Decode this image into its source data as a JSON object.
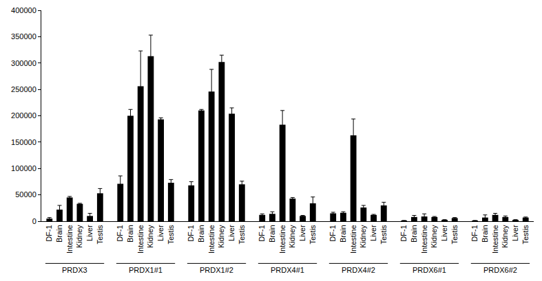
{
  "chart_data": {
    "type": "bar",
    "color": "#000000",
    "grid": false,
    "ylim": [
      0,
      400000
    ],
    "yticks": [
      0,
      50000,
      100000,
      150000,
      200000,
      250000,
      300000,
      350000,
      400000
    ],
    "groups": [
      {
        "label": "PRDX3",
        "categories": [
          "DF-1",
          "Brain",
          "Intestine",
          "Kidney",
          "Liver",
          "Testis"
        ],
        "values": [
          5000,
          22000,
          45000,
          33000,
          10000,
          53000
        ],
        "error": [
          2000,
          8000,
          2000,
          1000,
          5000,
          9000
        ]
      },
      {
        "label": "PRDX1#1",
        "categories": [
          "DF-1",
          "Brain",
          "Intestine",
          "Kidney",
          "Liver",
          "Testis"
        ],
        "values": [
          71000,
          200000,
          256000,
          313000,
          193000,
          73000
        ],
        "error": [
          15000,
          12000,
          67000,
          40000,
          3000,
          6000
        ]
      },
      {
        "label": "PRDX1#2",
        "categories": [
          "DF-1",
          "Brain",
          "Intestine",
          "Kidney",
          "Liver",
          "Testis"
        ],
        "values": [
          68000,
          210000,
          246000,
          302000,
          204000,
          70000
        ],
        "error": [
          7000,
          2000,
          42000,
          13000,
          11000,
          6000
        ]
      },
      {
        "label": "PRDX4#1",
        "categories": [
          "DF-1",
          "Brain",
          "Intestine",
          "Kidney",
          "Liver",
          "Testis"
        ],
        "values": [
          12000,
          14000,
          183000,
          43000,
          10000,
          34000
        ],
        "error": [
          2000,
          4000,
          27000,
          2000,
          1000,
          12000
        ]
      },
      {
        "label": "PRDX4#2",
        "categories": [
          "DF-1",
          "Brain",
          "Intestine",
          "Kidney",
          "Liver",
          "Testis"
        ],
        "values": [
          15000,
          16000,
          163000,
          26000,
          12000,
          30000
        ],
        "error": [
          2000,
          2000,
          31000,
          4000,
          1000,
          6000
        ]
      },
      {
        "label": "PRDX6#1",
        "categories": [
          "DF-1",
          "Brain",
          "Intestine",
          "Kidney",
          "Liver",
          "Testis"
        ],
        "values": [
          1000,
          8000,
          9000,
          8000,
          2000,
          6000
        ],
        "error": [
          500,
          3000,
          5000,
          1000,
          1000,
          1000
        ]
      },
      {
        "label": "PRDX6#2",
        "categories": [
          "DF-1",
          "Brain",
          "Intestine",
          "Kidney",
          "Liver",
          "Testis"
        ],
        "values": [
          1000,
          7000,
          12000,
          8000,
          2000,
          7000
        ],
        "error": [
          500,
          5000,
          3000,
          2000,
          1000,
          1000
        ]
      }
    ]
  }
}
